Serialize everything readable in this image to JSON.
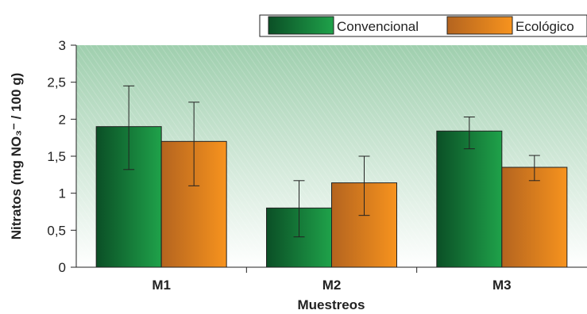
{
  "chart_data": {
    "type": "bar",
    "categories": [
      "M1",
      "M2",
      "M3"
    ],
    "series": [
      {
        "name": "Convencional",
        "values": [
          1.9,
          0.8,
          1.84
        ],
        "error_low": [
          1.32,
          0.41,
          1.6
        ],
        "error_high": [
          2.45,
          1.17,
          2.03
        ],
        "color_dark": "#0b4f26",
        "color_light": "#1fa24a"
      },
      {
        "name": "Ecológico",
        "values": [
          1.7,
          1.14,
          1.35
        ],
        "error_low": [
          1.1,
          0.7,
          1.17
        ],
        "error_high": [
          2.23,
          1.5,
          1.51
        ],
        "color_dark": "#b4641f",
        "color_light": "#f7931e"
      }
    ],
    "xlabel": "Muestreos",
    "ylabel": "Nitratos (mg NO₃⁻ / 100 g)",
    "ylim": [
      0,
      3
    ],
    "yticks": [
      0,
      0.5,
      1,
      1.5,
      2,
      2.5,
      3
    ],
    "ytick_labels": [
      "0",
      "0,5",
      "1",
      "1,5",
      "2",
      "2,5",
      "3"
    ],
    "legend_position": "top-right",
    "background_gradient": [
      "#9fcfae",
      "#ffffff"
    ],
    "grid": false
  }
}
